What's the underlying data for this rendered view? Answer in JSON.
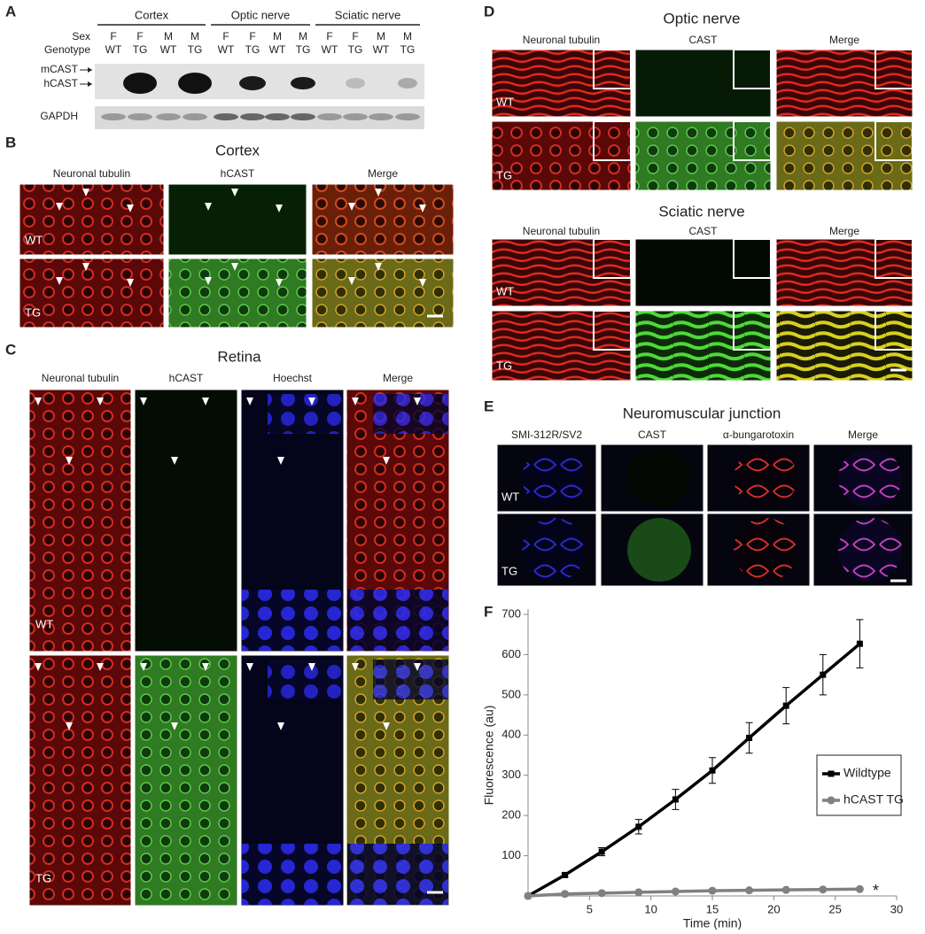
{
  "panel_a": {
    "letter": "A",
    "groups": [
      "Cortex",
      "Optic nerve",
      "Sciatic nerve"
    ],
    "row_labels": [
      "Sex",
      "Genotype"
    ],
    "sex": [
      "F",
      "F",
      "M",
      "M",
      "F",
      "F",
      "M",
      "M",
      "F",
      "F",
      "M",
      "M"
    ],
    "genotype": [
      "WT",
      "TG",
      "WT",
      "TG",
      "WT",
      "TG",
      "WT",
      "TG",
      "WT",
      "TG",
      "WT",
      "TG"
    ],
    "bands": [
      "mCAST",
      "hCAST",
      "GAPDH"
    ]
  },
  "panel_b": {
    "letter": "B",
    "title": "Cortex",
    "columns": [
      "Neuronal tubulin",
      "hCAST",
      "Merge"
    ],
    "rows": [
      "WT",
      "TG"
    ]
  },
  "panel_c": {
    "letter": "C",
    "title": "Retina",
    "columns": [
      "Neuronal tubulin",
      "hCAST",
      "Hoechst",
      "Merge"
    ],
    "rows": [
      "WT",
      "TG"
    ]
  },
  "panel_d": {
    "letter": "D",
    "sections": [
      {
        "title": "Optic nerve",
        "columns": [
          "Neuronal tubulin",
          "CAST",
          "Merge"
        ],
        "rows": [
          "WT",
          "TG"
        ]
      },
      {
        "title": "Sciatic nerve",
        "columns": [
          "Neuronal tubulin",
          "CAST",
          "Merge"
        ],
        "rows": [
          "WT",
          "TG"
        ]
      }
    ]
  },
  "panel_e": {
    "letter": "E",
    "title": "Neuromuscular junction",
    "columns": [
      "SMI-312R/SV2",
      "CAST",
      "α-bungarotoxin",
      "Merge"
    ],
    "rows": [
      "WT",
      "TG"
    ]
  },
  "panel_f": {
    "letter": "F"
  },
  "chart_data": {
    "type": "line",
    "xlabel": "Time (min)",
    "ylabel": "Fluorescence (au)",
    "x": [
      0,
      3,
      6,
      9,
      12,
      15,
      18,
      21,
      24,
      27
    ],
    "series": [
      {
        "name": "Wildtype",
        "color": "#000000",
        "marker": "square",
        "values": [
          0,
          52,
          110,
          172,
          240,
          312,
          393,
          473,
          550,
          627
        ],
        "errors": [
          0,
          5,
          10,
          18,
          25,
          32,
          38,
          45,
          50,
          60
        ]
      },
      {
        "name": "hCAST TG",
        "color": "#808080",
        "marker": "circle",
        "values": [
          0,
          5,
          7,
          9,
          11,
          13,
          14,
          15,
          16,
          17
        ]
      }
    ],
    "annotation": "*",
    "xlim": [
      0,
      30
    ],
    "xticks": [
      5,
      10,
      15,
      20,
      25,
      30
    ],
    "ylim": [
      0,
      700
    ],
    "yticks": [
      100,
      200,
      300,
      400,
      500,
      600,
      700
    ],
    "legend": "right"
  }
}
